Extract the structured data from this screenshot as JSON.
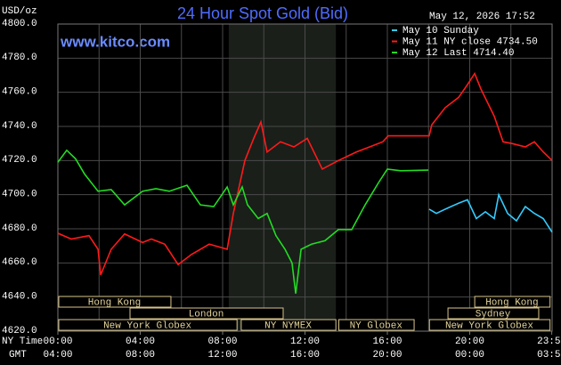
{
  "chart_data": {
    "type": "line",
    "title": "24 Hour Spot Gold (Bid)",
    "subtitle": "www.kitco.com",
    "y_label": "USD/oz",
    "timestamp": "May 12, 2026 17:52",
    "xlim": [
      0,
      24
    ],
    "ylim": [
      4620,
      4800
    ],
    "yticks": [
      {
        "value": 4620,
        "label": "4620.0"
      },
      {
        "value": 4640,
        "label": "4640.0"
      },
      {
        "value": 4660,
        "label": "4660.0"
      },
      {
        "value": 4680,
        "label": "4680.0"
      },
      {
        "value": 4700,
        "label": "4700.0"
      },
      {
        "value": 4720,
        "label": "4720.0"
      },
      {
        "value": 4740,
        "label": "4740.0"
      },
      {
        "value": 4760,
        "label": "4760.0"
      },
      {
        "value": 4780,
        "label": "4780.0"
      },
      {
        "value": 4800,
        "label": "4800.0"
      }
    ],
    "x_label": "NY Time",
    "xticks": [
      {
        "value": 0,
        "label": "00:00"
      },
      {
        "value": 4,
        "label": "04:00"
      },
      {
        "value": 8,
        "label": "08:00"
      },
      {
        "value": 12,
        "label": "12:00"
      },
      {
        "value": 16,
        "label": "16:00"
      },
      {
        "value": 20,
        "label": "20:00"
      },
      {
        "value": 23.983,
        "label": "23:59"
      }
    ],
    "x2_label": "GMT",
    "x2_tick_labels": [
      "04:00",
      "08:00",
      "12:00",
      "16:00",
      "20:00",
      "00:00",
      "03:59"
    ],
    "xgrid": [
      0,
      2,
      4,
      6,
      8,
      10,
      12,
      14,
      16,
      18,
      20,
      22,
      24
    ],
    "grid": true,
    "highlight_x": [
      8.3,
      13.5
    ],
    "legend_position": "top-right",
    "series": [
      {
        "name": "May 10 Sunday",
        "color": "#33ccff",
        "x": [
          18.03,
          18.38,
          18.81,
          19.46,
          19.89,
          20.32,
          20.76,
          21.19,
          21.41,
          21.84,
          22.27,
          22.7,
          23.14,
          23.57,
          24
        ],
        "values": [
          4691.5,
          4689,
          4691.5,
          4695,
          4697,
          4686,
          4690,
          4686,
          4700,
          4689,
          4684.7,
          4693,
          4689,
          4686,
          4678
        ]
      },
      {
        "name": "May 11 NY close 4734.50",
        "color": "#ff1a1a",
        "x": [
          0,
          0.65,
          1.51,
          1.95,
          2.08,
          2.59,
          3.24,
          4.11,
          4.54,
          5.19,
          5.84,
          6.49,
          7.35,
          8.22,
          8.52,
          9.08,
          9.51,
          9.86,
          10.16,
          10.81,
          11.46,
          12.11,
          12.84,
          13.62,
          14.49,
          15.14,
          15.78,
          16.04,
          18.03,
          18.16,
          18.81,
          19.46,
          19.89,
          20.24,
          20.54,
          21.19,
          21.62,
          22.05,
          22.7,
          23.14,
          23.57,
          24
        ],
        "values": [
          4677.4,
          4674,
          4676,
          4668,
          4653,
          4668,
          4677,
          4672,
          4674,
          4671,
          4659,
          4665,
          4671,
          4668,
          4689,
          4720,
          4733,
          4742.6,
          4725,
          4731,
          4728,
          4733,
          4715,
          4720,
          4725,
          4728,
          4731,
          4734.5,
          4734.5,
          4741,
          4751,
          4757,
          4764.5,
          4771,
          4762,
          4746,
          4731,
          4730,
          4728,
          4731,
          4725,
          4720
        ]
      },
      {
        "name": "May 12 Last 4714.40",
        "color": "#22dd22",
        "x": [
          0,
          0.43,
          0.86,
          1.3,
          1.95,
          2.59,
          3.24,
          4.11,
          4.76,
          5.41,
          6.27,
          6.92,
          7.57,
          8.22,
          8.52,
          8.95,
          9.21,
          9.73,
          10.16,
          10.59,
          11.03,
          11.37,
          11.55,
          11.81,
          12.32,
          12.97,
          13.62,
          14.27,
          14.92,
          15.57,
          16.0,
          16.65,
          17.99
        ],
        "values": [
          4719,
          4726,
          4721,
          4712,
          4702,
          4703,
          4694,
          4702,
          4703.5,
          4702,
          4705.5,
          4694,
          4693,
          4704.5,
          4694,
          4704.5,
          4694,
          4686,
          4689,
          4676,
          4668,
          4660,
          4642,
          4668,
          4671,
          4673,
          4679.5,
          4679.5,
          4694,
          4707,
          4715,
          4714,
          4714.4
        ]
      }
    ],
    "sessions": [
      [
        {
          "label": "Hong Kong",
          "start": 0,
          "end": 5.49
        },
        {
          "label": "Hong Kong",
          "start": 20.2,
          "end": 23.9
        }
      ],
      [
        {
          "label": "London",
          "start": 3.46,
          "end": 10.94
        },
        {
          "label": "Sydney",
          "start": 18.9,
          "end": 23.35
        }
      ],
      [
        {
          "label": "New York Globex",
          "start": 0,
          "end": 8.7
        },
        {
          "label": "NY NYMEX",
          "start": 8.86,
          "end": 13.5
        },
        {
          "label": "NY Globex",
          "start": 13.6,
          "end": 17.3
        },
        {
          "label": "New York Globex",
          "start": 18.0,
          "end": 23.9
        }
      ]
    ]
  }
}
